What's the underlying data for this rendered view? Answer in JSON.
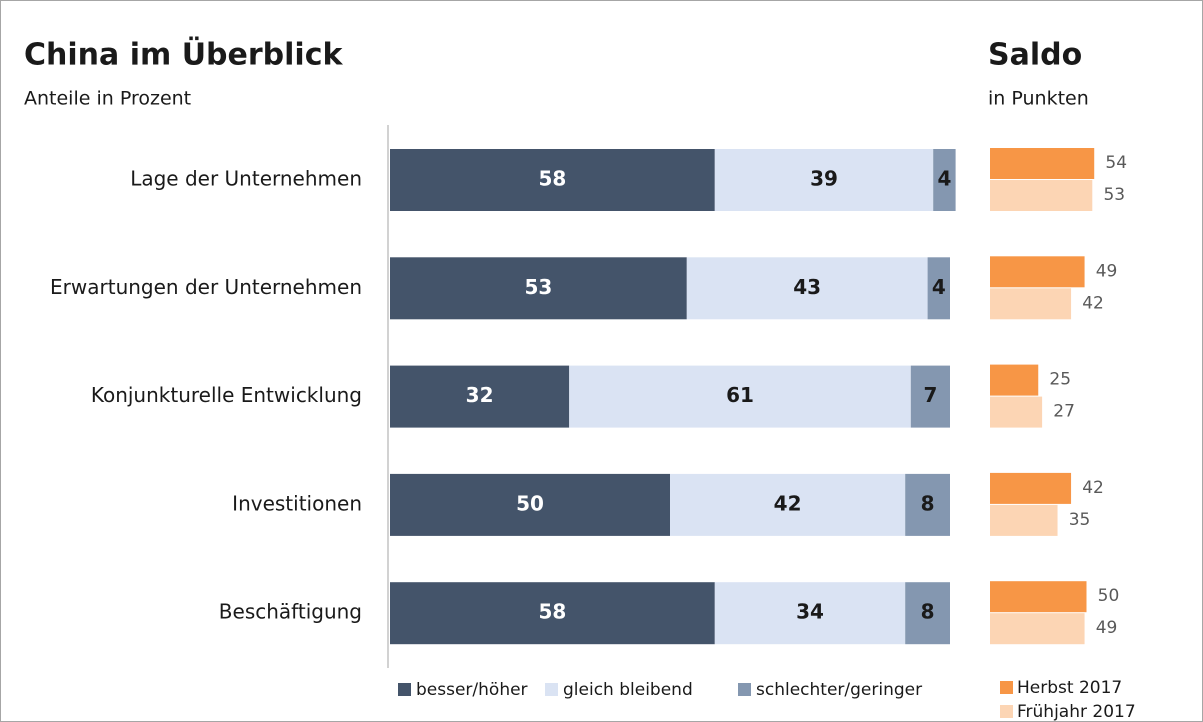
{
  "chart_data": [
    {
      "type": "stacked-bar",
      "title": "China im Überblick",
      "subtitle": "Anteile in Prozent",
      "categories": [
        "Lage der Unternehmen",
        "Erwartungen der Unternehmen",
        "Konjunkturelle Entwicklung",
        "Investitionen",
        "Beschäftigung"
      ],
      "series": [
        {
          "name": "besser/höher",
          "color": "#44546a",
          "values": [
            58,
            53,
            32,
            50,
            58
          ]
        },
        {
          "name": "gleich bleibend",
          "color": "#dae3f3",
          "values": [
            39,
            43,
            61,
            42,
            34
          ]
        },
        {
          "name": "schlechter/geringer",
          "color": "#8497b0",
          "values": [
            4,
            4,
            7,
            8,
            8
          ]
        }
      ],
      "xlim": [
        0,
        100
      ]
    },
    {
      "type": "grouped-bar",
      "title": "Saldo",
      "subtitle": "in Punkten",
      "series": [
        {
          "name": "Herbst 2017",
          "color": "#f79646",
          "values": [
            54,
            49,
            25,
            42,
            50
          ]
        },
        {
          "name": "Frühjahr 2017",
          "color": "#fcd5b4",
          "values": [
            53,
            42,
            27,
            35,
            49
          ]
        }
      ],
      "xlim": [
        0,
        100
      ]
    }
  ]
}
